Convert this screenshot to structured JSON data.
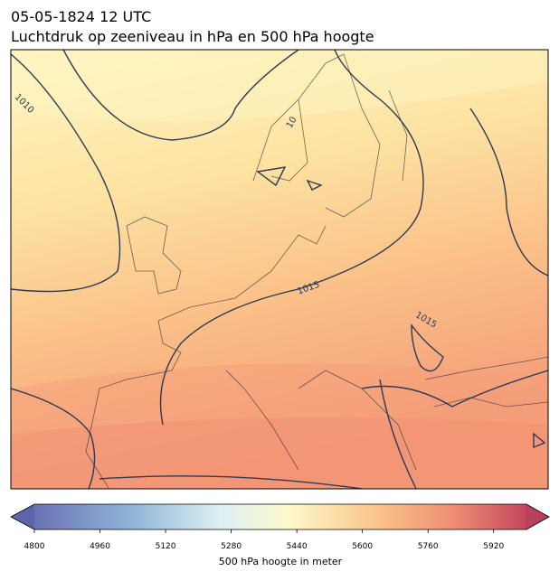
{
  "title": "05-05-1824 12 UTC",
  "subtitle": "Luchtdruk op zeeniveau in hPa en 500 hPa hoogte",
  "contour_labels": [
    "1010",
    "10",
    "1015",
    "1015"
  ],
  "colorbar": {
    "label": "500 hPa hoogte in meter",
    "lim": [
      4800,
      6000
    ],
    "ticks": [
      4800,
      4960,
      5120,
      5280,
      5440,
      5600,
      5760,
      5920
    ]
  }
}
